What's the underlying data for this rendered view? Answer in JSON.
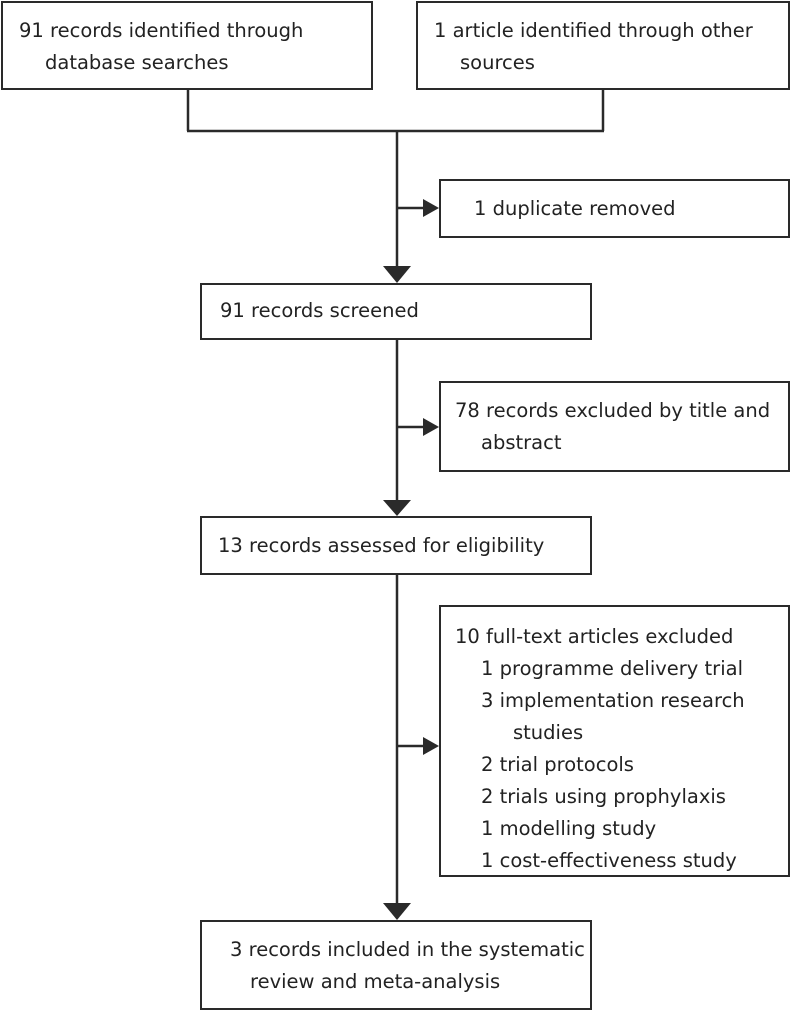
{
  "flowchart": {
    "identification": {
      "database": [
        "91 records identified through",
        "database searches"
      ],
      "other": [
        "1 article identified through other",
        "sources"
      ]
    },
    "duplicates": "1 duplicate removed",
    "screened": "91 records screened",
    "excluded_title": [
      "78 records excluded by title and",
      "abstract"
    ],
    "eligibility": "13 records assessed for eligibility",
    "fulltext_excluded": {
      "header": "10 full-text articles excluded",
      "reasons": [
        "1 programme delivery trial",
        "3 implementation research",
        "studies",
        "2 trial protocols",
        "2 trials using prophylaxis",
        "1 modelling study",
        "1 cost-effectiveness study"
      ]
    },
    "included": [
      "3 records included in the systematic",
      "review and meta-analysis"
    ]
  }
}
